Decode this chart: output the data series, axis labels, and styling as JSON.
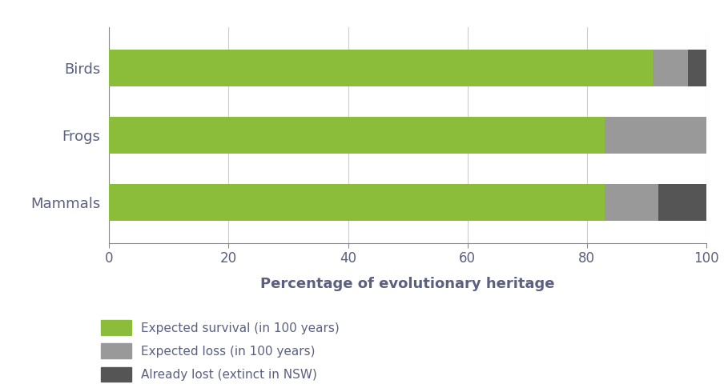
{
  "categories": [
    "Birds",
    "Frogs",
    "Mammals"
  ],
  "survival": [
    91,
    83,
    83
  ],
  "loss": [
    6,
    17,
    9
  ],
  "already_lost": [
    3,
    0,
    8
  ],
  "color_survival": "#8BBD3B",
  "color_loss": "#999999",
  "color_already_lost": "#555555",
  "xlabel": "Percentage of evolutionary heritage",
  "xlim": [
    0,
    100
  ],
  "xticks": [
    0,
    20,
    40,
    60,
    80,
    100
  ],
  "legend_labels": [
    "Expected survival (in 100 years)",
    "Expected loss (in 100 years)",
    "Already lost (extinct in NSW)"
  ],
  "background_color": "#ffffff",
  "text_color": "#5B6080",
  "bar_height": 0.55,
  "figsize": [
    9.09,
    4.9
  ],
  "dpi": 100
}
